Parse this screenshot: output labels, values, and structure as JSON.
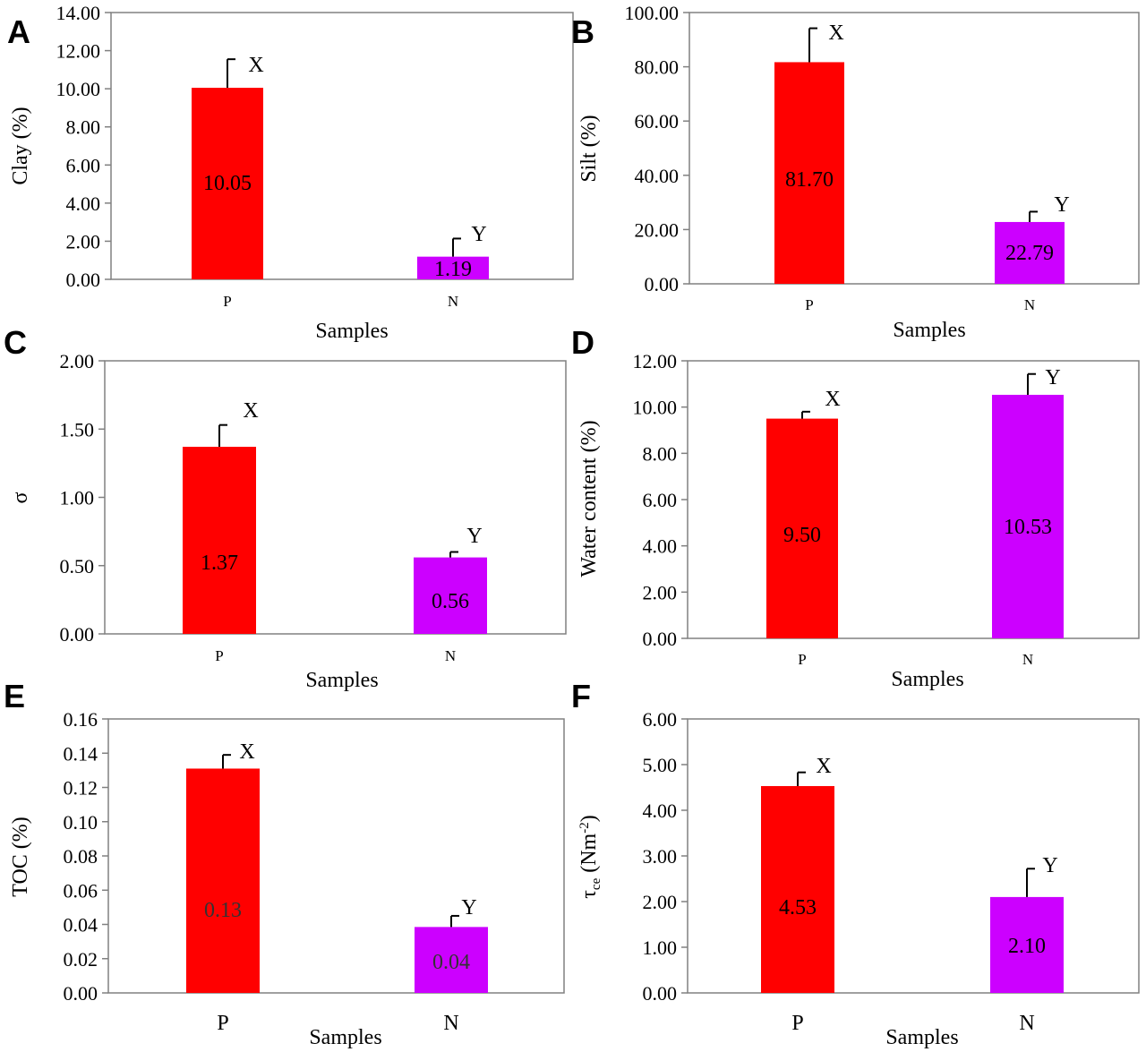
{
  "colors": {
    "P": "#ff0000",
    "N": "#cc00ff",
    "axis": "#808080",
    "error_bar": "#000000",
    "dim_label": "#333333"
  },
  "chart_data": [
    {
      "panel": "A",
      "type": "bar",
      "ylabel": "Clay (%)",
      "xlabel": "Samples",
      "categories": [
        "P",
        "N"
      ],
      "values": [
        10.05,
        1.19
      ],
      "errors": [
        1.5,
        0.95
      ],
      "value_labels": [
        "10.05",
        "1.19"
      ],
      "significance": [
        "X",
        "Y"
      ],
      "ylim": [
        0,
        14
      ],
      "yticks": [
        "0.00",
        "2.00",
        "4.00",
        "6.00",
        "8.00",
        "10.00",
        "12.00",
        "14.00"
      ]
    },
    {
      "panel": "B",
      "type": "bar",
      "ylabel": "Silt  (%)",
      "xlabel": "Samples",
      "categories": [
        "P",
        "N"
      ],
      "values": [
        81.7,
        22.79
      ],
      "errors": [
        12.5,
        3.8
      ],
      "value_labels": [
        "81.70",
        "22.79"
      ],
      "significance": [
        "X",
        "Y"
      ],
      "ylim": [
        0,
        100
      ],
      "yticks": [
        "0.00",
        "20.00",
        "40.00",
        "60.00",
        "80.00",
        "100.00"
      ]
    },
    {
      "panel": "C",
      "type": "bar",
      "ylabel": "σ",
      "xlabel": "Samples",
      "categories": [
        "P",
        "N"
      ],
      "values": [
        1.37,
        0.56
      ],
      "errors": [
        0.16,
        0.04
      ],
      "value_labels": [
        "1.37",
        "0.56"
      ],
      "significance": [
        "X",
        "Y"
      ],
      "ylim": [
        0,
        2
      ],
      "yticks": [
        "0.00",
        "0.50",
        "1.00",
        "1.50",
        "2.00"
      ]
    },
    {
      "panel": "D",
      "type": "bar",
      "ylabel": "Water content (%)",
      "xlabel": "Samples",
      "categories": [
        "P",
        "N"
      ],
      "values": [
        9.5,
        10.53
      ],
      "errors": [
        0.3,
        0.9
      ],
      "value_labels": [
        "9.50",
        "10.53"
      ],
      "significance": [
        "X",
        "Y"
      ],
      "ylim": [
        0,
        12
      ],
      "yticks": [
        "0.00",
        "2.00",
        "4.00",
        "6.00",
        "8.00",
        "10.00",
        "12.00"
      ]
    },
    {
      "panel": "E",
      "type": "bar",
      "ylabel": "TOC (%)",
      "xlabel": "Samples",
      "categories": [
        "P",
        "N"
      ],
      "values": [
        0.131,
        0.0385
      ],
      "errors": [
        0.008,
        0.0065
      ],
      "value_labels": [
        "0.13",
        "0.04"
      ],
      "significance": [
        "X",
        "Y"
      ],
      "ylim": [
        0,
        0.16
      ],
      "yticks": [
        "0.00",
        "0.02",
        "0.04",
        "0.06",
        "0.08",
        "0.10",
        "0.12",
        "0.14",
        "0.16"
      ]
    },
    {
      "panel": "F",
      "type": "bar",
      "ylabel": "τ",
      "ylabel_subscript": "ce",
      "ylabel_suffix": " (Nm",
      "ylabel_superscript": "-2",
      "ylabel_close": ")",
      "xlabel": "Samples",
      "categories": [
        "P",
        "N"
      ],
      "values": [
        4.53,
        2.1
      ],
      "errors": [
        0.3,
        0.62
      ],
      "value_labels": [
        "4.53",
        "2.10"
      ],
      "significance": [
        "X",
        "Y"
      ],
      "ylim": [
        0,
        6
      ],
      "yticks": [
        "0.00",
        "1.00",
        "2.00",
        "3.00",
        "4.00",
        "5.00",
        "6.00"
      ]
    }
  ]
}
